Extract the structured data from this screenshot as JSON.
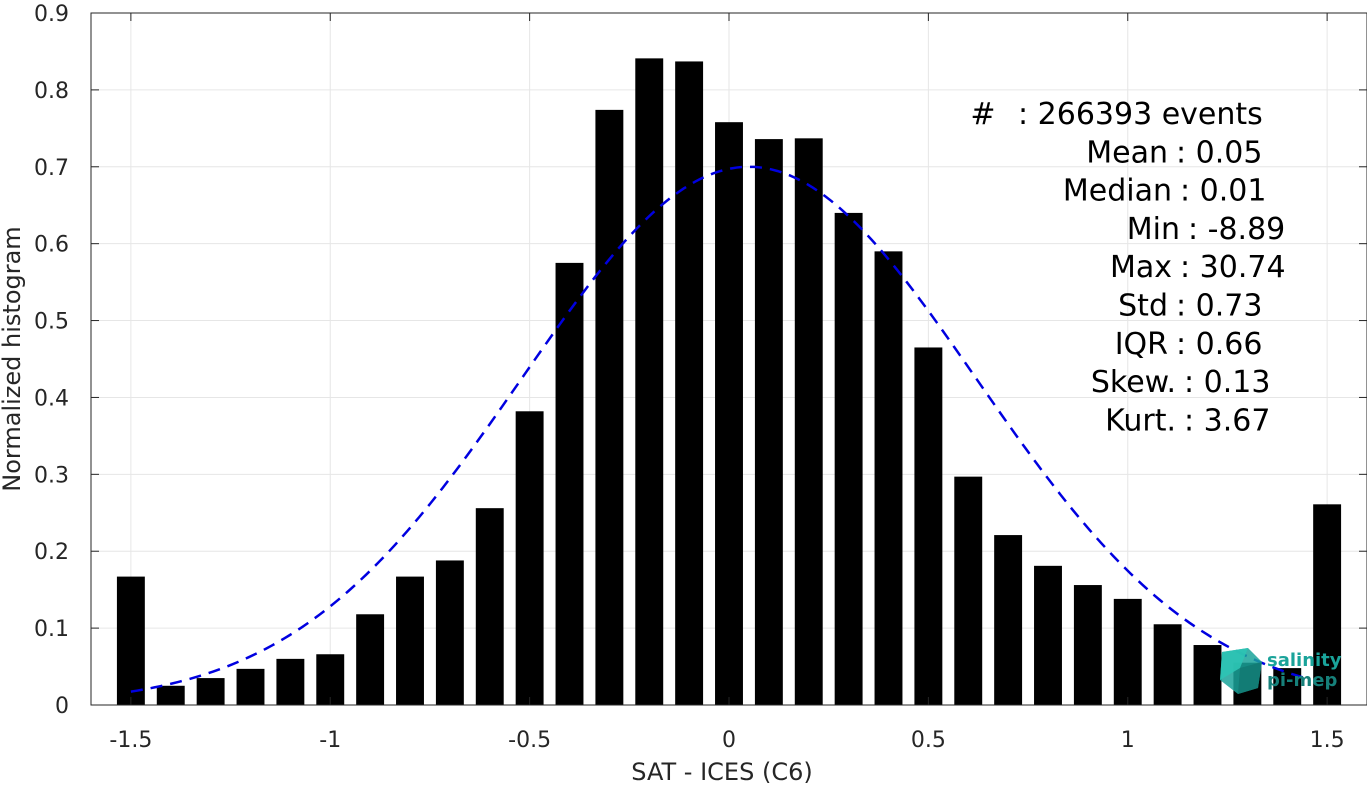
{
  "chart_data": {
    "type": "bar",
    "xlabel": "SAT - ICES (C6)",
    "ylabel": "Normalized histogram",
    "xlim": [
      -1.6,
      1.6
    ],
    "ylim": [
      0,
      0.9
    ],
    "grid": true,
    "x_ticks": [
      -1.5,
      -1,
      -0.5,
      0,
      0.5,
      1,
      1.5
    ],
    "x_tick_labels": [
      "-1.5",
      "-1",
      "-0.5",
      "0",
      "0.5",
      "1",
      "1.5"
    ],
    "y_ticks": [
      0,
      0.1,
      0.2,
      0.3,
      0.4,
      0.5,
      0.6,
      0.7,
      0.8,
      0.9
    ],
    "y_tick_labels": [
      "0",
      "0.1",
      "0.2",
      "0.3",
      "0.4",
      "0.5",
      "0.6",
      "0.7",
      "0.8",
      "0.9"
    ],
    "bar_width": 0.07,
    "bar_color": "#000000",
    "categories": [
      -1.5,
      -1.4,
      -1.3,
      -1.2,
      -1.1,
      -1.0,
      -0.9,
      -0.8,
      -0.7,
      -0.6,
      -0.5,
      -0.4,
      -0.3,
      -0.2,
      -0.1,
      0.0,
      0.1,
      0.2,
      0.3,
      0.4,
      0.5,
      0.6,
      0.7,
      0.8,
      0.9,
      1.0,
      1.1,
      1.2,
      1.3,
      1.4,
      1.5
    ],
    "values": [
      0.167,
      0.025,
      0.035,
      0.047,
      0.06,
      0.066,
      0.118,
      0.167,
      0.188,
      0.256,
      0.382,
      0.575,
      0.774,
      0.841,
      0.837,
      0.758,
      0.736,
      0.737,
      0.64,
      0.59,
      0.465,
      0.297,
      0.221,
      0.181,
      0.156,
      0.138,
      0.105,
      0.078,
      0.055,
      0.048,
      0.261
    ],
    "fit_curve": {
      "style": "dashed",
      "color": "#0000e0",
      "mean": 0.05,
      "std": 0.57,
      "peak": 0.7,
      "x_range": [
        -1.5,
        1.45
      ]
    },
    "stats": [
      {
        "label": "#",
        "value": ": 266393 events"
      },
      {
        "label": "Mean",
        "value": ": 0.05"
      },
      {
        "label": "Median",
        "value": ": 0.01"
      },
      {
        "label": "Min",
        "value": ": -8.89"
      },
      {
        "label": "Max",
        "value": ": 30.74"
      },
      {
        "label": "Std",
        "value": ": 0.73"
      },
      {
        "label": "IQR",
        "value": ": 0.66"
      },
      {
        "label": "Skew.",
        "value": ": 0.13"
      },
      {
        "label": "Kurt.",
        "value": ": 3.67"
      }
    ]
  },
  "logo": {
    "line1": "salinity",
    "line2": "pi-mep",
    "color": "#1aa39a"
  }
}
